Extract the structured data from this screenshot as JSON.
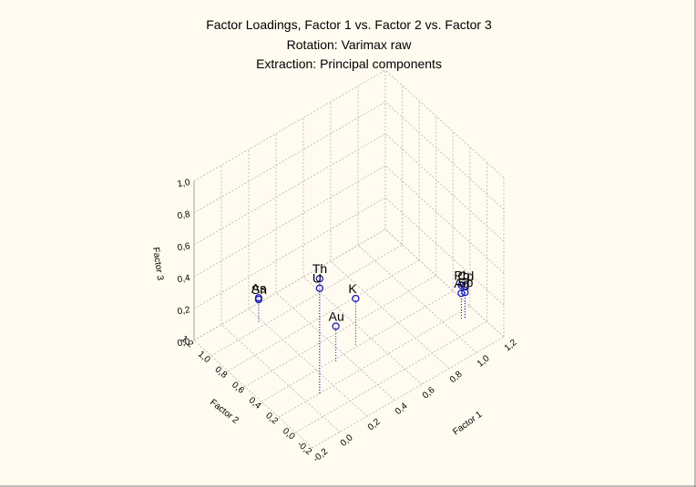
{
  "colors": {
    "background": "#fffbf0",
    "border_dark": "#808080",
    "grid": "#c0c0c0",
    "marker": "#1a1ab4",
    "drop_line": "#1a1ab4"
  },
  "chart_data": {
    "type": "scatter3d",
    "title": "Factor Loadings, Factor 1 vs. Factor 2 vs. Factor 3",
    "subtitle_lines": [
      "Rotation: Varimax raw",
      "Extraction: Principal components"
    ],
    "xlabel": "Factor 1",
    "ylabel": "Factor 2",
    "zlabel": "Factor 3",
    "x_ticks": [
      "-0,2",
      "0,0",
      "0,2",
      "0,4",
      "0,6",
      "0,8",
      "1,0",
      "1,2"
    ],
    "y_ticks": [
      "-0,2",
      "0,0",
      "0,2",
      "0,4",
      "0,6",
      "0,8",
      "1,0",
      "1,2"
    ],
    "z_ticks": [
      "0,0",
      "0,2",
      "0,4",
      "0,6",
      "0,8",
      "1,0"
    ],
    "xlim": [
      -0.2,
      1.2
    ],
    "ylim": [
      -0.2,
      1.2
    ],
    "zlim": [
      0,
      1
    ],
    "grid": true,
    "points": [
      {
        "label": "Th",
        "x": 0.1,
        "y": 0.2,
        "z": 0.72
      },
      {
        "label": "U",
        "x": 0.1,
        "y": 0.2,
        "z": 0.66
      },
      {
        "label": "Au",
        "x": 0.33,
        "y": 0.38,
        "z": 0.22
      },
      {
        "label": "K",
        "x": 0.5,
        "y": 0.42,
        "z": 0.29
      },
      {
        "label": "As",
        "x": 0.18,
        "y": 1.05,
        "z": 0.15
      },
      {
        "label": "Sn",
        "x": 0.18,
        "y": 1.05,
        "z": 0.14
      },
      {
        "label": "Pb",
        "x": 1.1,
        "y": 0.14,
        "z": 0.21
      },
      {
        "label": "Ag",
        "x": 1.1,
        "y": 0.14,
        "z": 0.16
      },
      {
        "label": "Cd",
        "x": 1.12,
        "y": 0.13,
        "z": 0.2
      },
      {
        "label": "Sb",
        "x": 1.12,
        "y": 0.13,
        "z": 0.16
      }
    ]
  }
}
